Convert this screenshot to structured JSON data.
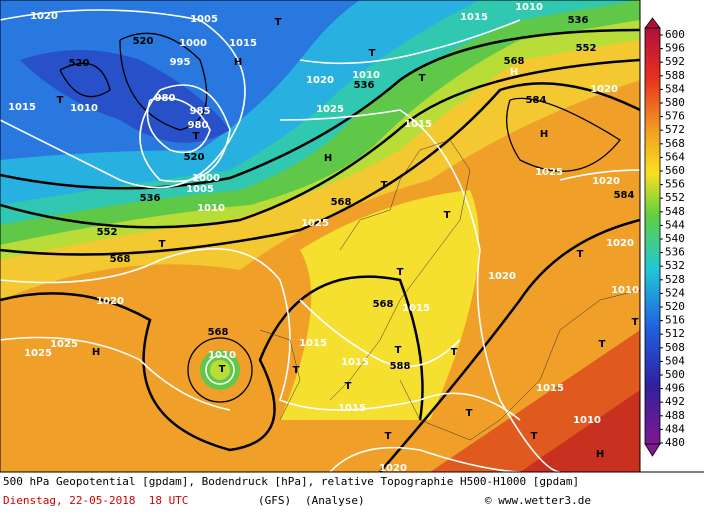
{
  "map": {
    "labels": [
      "1020",
      "1005",
      "T",
      "520",
      "1000",
      "1015",
      "T",
      "536",
      "552",
      "1010",
      "1015",
      "520",
      "H",
      "995",
      "1020",
      "1010",
      "536",
      "T",
      "568",
      "H",
      "584",
      "1020",
      "T",
      "1015",
      "1010",
      "980",
      "985",
      "980",
      "T",
      "1025",
      "1015",
      "H",
      "520",
      "H",
      "1000",
      "1005",
      "536",
      "1010",
      "T",
      "568",
      "1025",
      "1025",
      "1020",
      "584",
      "552",
      "T",
      "T",
      "1020",
      "T",
      "568",
      "T",
      "1020",
      "1010",
      "1020",
      "568",
      "1015",
      "T",
      "568",
      "1010",
      "T",
      "1025",
      "1025",
      "H",
      "1015",
      "T",
      "T",
      "T",
      "1015",
      "588",
      "T",
      "T",
      "1015",
      "1015",
      "T",
      "1010",
      "T",
      "T",
      "H",
      "1020"
    ]
  },
  "legend": {
    "labels": [
      "600",
      "596",
      "592",
      "588",
      "584",
      "580",
      "576",
      "572",
      "568",
      "564",
      "560",
      "556",
      "552",
      "548",
      "544",
      "540",
      "536",
      "532",
      "528",
      "524",
      "520",
      "516",
      "512",
      "508",
      "504",
      "500",
      "496",
      "492",
      "488",
      "484",
      "480"
    ]
  },
  "caption": {
    "line1": "500 hPa Geopotential [gpdam], Bodendruck [hPa], relative Topographie H500-H1000 [gpdam]",
    "date": "Dienstag, 22-05-2018  18 UTC",
    "model": "(GFS)",
    "run": "(Analyse)",
    "credit": "© www.wetter3.de"
  }
}
